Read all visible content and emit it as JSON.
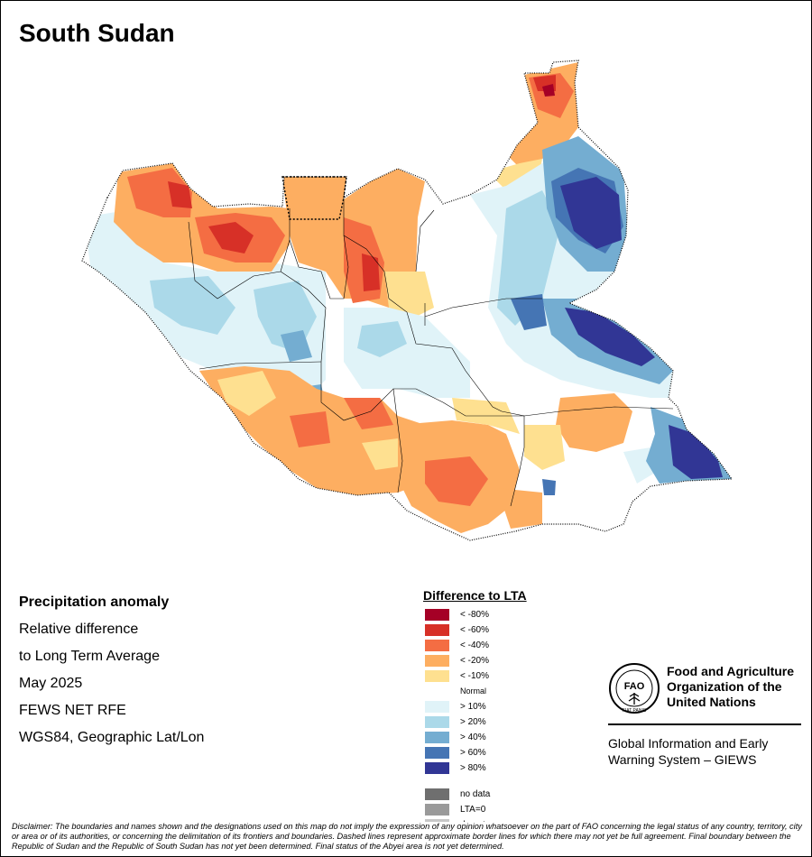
{
  "title": "South Sudan",
  "info": {
    "heading": "Precipitation anomaly",
    "line1": "Relative difference",
    "line2": "to Long Term Average",
    "line3": "May 2025",
    "line4": "FEWS NET RFE",
    "line5": "WGS84, Geographic Lat/Lon"
  },
  "legend": {
    "title": "Difference to LTA",
    "items": [
      {
        "label": "< -80%",
        "color": "#a50026"
      },
      {
        "label": "< -60%",
        "color": "#d73027"
      },
      {
        "label": "< -40%",
        "color": "#f46d43"
      },
      {
        "label": "< -20%",
        "color": "#fdae61"
      },
      {
        "label": "< -10%",
        "color": "#fee090"
      },
      {
        "label": "Normal",
        "color": "#ffffff"
      },
      {
        "label": "> 10%",
        "color": "#e0f3f8"
      },
      {
        "label": "> 20%",
        "color": "#abd9e9"
      },
      {
        "label": "> 40%",
        "color": "#74add1"
      },
      {
        "label": "> 60%",
        "color": "#4575b4"
      },
      {
        "label": "> 80%",
        "color": "#313695"
      }
    ],
    "extras": [
      {
        "label": "no data",
        "color": "#6f6f6f"
      },
      {
        "label": "LTA=0",
        "color": "#9a9a9a"
      },
      {
        "label": "desert",
        "color": "#c8c8c8"
      }
    ]
  },
  "fao": {
    "logo_text": "FAO",
    "logo_motto": "FIAT PANIS",
    "line1": "Food and Agriculture",
    "line2": "Organization of the",
    "line3": "United Nations",
    "giews1": "Global Information and Early",
    "giews2": "Warning System – GIEWS"
  },
  "disclaimer": "Disclaimer: The boundaries and names shown and the designations used on this map do not imply the expression of any opinion whatsoever on the part of FAO concerning the legal status of any country, territory, city or area or of its authorities, or concerning the delimitation of its frontiers and boundaries. Dashed lines represent approximate border lines for which there may not yet be full agreement. Final boundary between the Republic of Sudan and the Republic of South Sudan has not yet been determined. Final status of the Abyei area is not yet determined."
}
